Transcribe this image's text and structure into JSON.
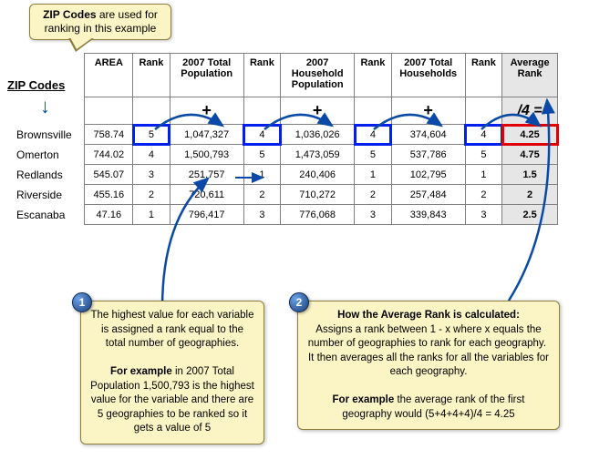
{
  "speech": {
    "html": "<b>ZIP Codes</b> are used for ranking in this example"
  },
  "zip_label": "ZIP Codes",
  "headers": {
    "geo": "",
    "area": "AREA",
    "rank": "Rank",
    "pop": "2007 Total Population",
    "hh_pop": "2007 Household Population",
    "hh": "2007 Total Households",
    "avg": "Average Rank"
  },
  "ops": {
    "plus": "+",
    "avg": "/4 ="
  },
  "rows": [
    {
      "geo": "Brownsville",
      "area": "758.74",
      "r1": "5",
      "pop": "1,047,327",
      "r2": "4",
      "hhpop": "1,036,026",
      "r3": "4",
      "hh": "374,604",
      "r4": "4",
      "avg": "4.25",
      "hl": true
    },
    {
      "geo": "Omerton",
      "area": "744.02",
      "r1": "4",
      "pop": "1,500,793",
      "r2": "5",
      "hhpop": "1,473,059",
      "r3": "5",
      "hh": "537,786",
      "r4": "5",
      "avg": "4.75"
    },
    {
      "geo": "Redlands",
      "area": "545.07",
      "r1": "3",
      "pop": "251,757",
      "r2": "1",
      "hhpop": "240,406",
      "r3": "1",
      "hh": "102,795",
      "r4": "1",
      "avg": "1.5"
    },
    {
      "geo": "Riverside",
      "area": "455.16",
      "r1": "2",
      "pop": "720,611",
      "r2": "2",
      "hhpop": "710,272",
      "r3": "2",
      "hh": "257,484",
      "r4": "2",
      "avg": "2"
    },
    {
      "geo": "Escanaba",
      "area": "47.16",
      "r1": "1",
      "pop": "796,417",
      "r2": "3",
      "hhpop": "776,068",
      "r3": "3",
      "hh": "339,843",
      "r4": "3",
      "avg": "2.5"
    }
  ],
  "note1": {
    "badge": "1",
    "html": "The highest value for each variable is assigned a rank equal to the total number of geographies.<br><br><b>For example</b> in 2007 Total Population 1,500,793 is the highest value for the variable and there are 5 geographies to be ranked so it gets a value of 5"
  },
  "note2": {
    "badge": "2",
    "html": "<b>How the Average Rank is calculated:</b><br>Assigns a rank between 1 - x where x equals the number of geographies to rank for each geography.&nbsp; It then averages all the ranks for all the variables for each geography.<br><br><b>For example</b> the average rank of the first geography would (5+4+4+4)/4 = 4.25"
  },
  "colors": {
    "callout_bg": "#fbf5c6",
    "callout_border": "#8c7f3e",
    "arrow_blue": "#0a4aa6",
    "highlight_blue": "#0020ee",
    "highlight_red": "#e10000",
    "avg_col_bg": "#e6e6e6"
  }
}
